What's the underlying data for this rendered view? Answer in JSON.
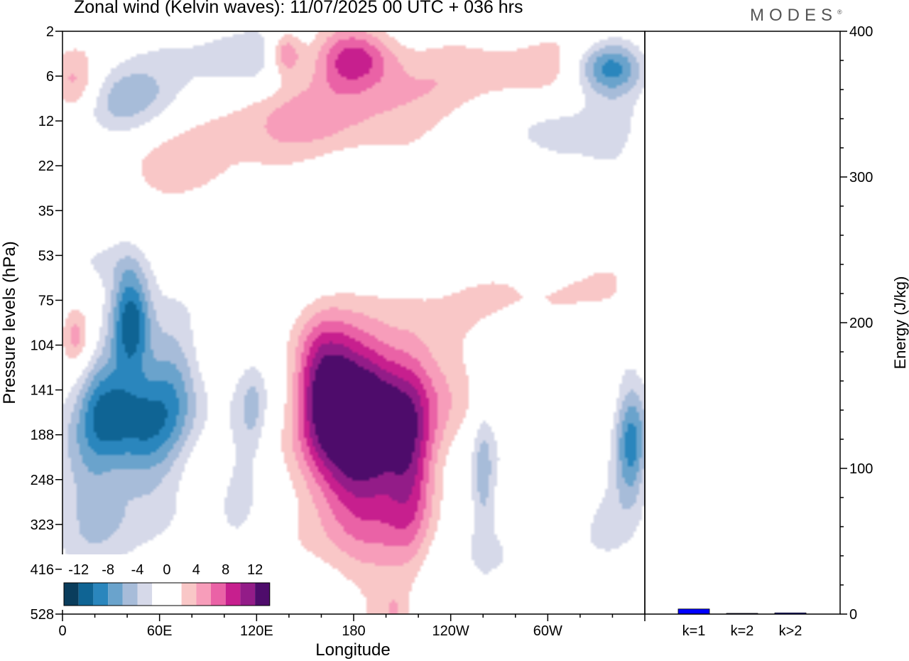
{
  "header": {
    "title": "Zonal wind (Kelvin waves):  11/07/2025  00 UTC  + 036 hrs",
    "brand": "MODES",
    "brand_mark": "®"
  },
  "chart_data": [
    {
      "type": "heatmap",
      "title": "Zonal wind (Kelvin waves):  11/07/2025  00 UTC  + 036 hrs",
      "xlabel": "Longitude",
      "ylabel": "Pressure levels (hPa)",
      "x_ticks": [
        {
          "lon": 0,
          "label": "0"
        },
        {
          "lon": 60,
          "label": "60E"
        },
        {
          "lon": 120,
          "label": "120E"
        },
        {
          "lon": 180,
          "label": "180"
        },
        {
          "lon": 240,
          "label": "120W"
        },
        {
          "lon": 300,
          "label": "60W"
        }
      ],
      "x_range": [
        0,
        360
      ],
      "y_levels": [
        "2",
        "6",
        "12",
        "22",
        "35",
        "53",
        "75",
        "104",
        "141",
        "188",
        "248",
        "323",
        "416",
        "528"
      ],
      "colorbar": {
        "labels": [
          "-12",
          "-8",
          "-4",
          "0",
          "4",
          "8",
          "12"
        ],
        "colors": [
          "#0a3d5c",
          "#0f6494",
          "#2a86bd",
          "#6aa3cc",
          "#a7bcd9",
          "#d6d9e9",
          "#ffffff",
          "#ffffff",
          "#f9c7c7",
          "#f79dba",
          "#ea62a6",
          "#c71f8e",
          "#931c88",
          "#4e0c6b"
        ]
      },
      "features": [
        {
          "lon": 42,
          "level": 6.5,
          "u": -11,
          "dlon": 12,
          "dlev": 1.3
        },
        {
          "lon": 52,
          "level": 8.8,
          "u": -8,
          "dlon": 28,
          "dlev": 1.1
        },
        {
          "lon": 25,
          "level": 8.2,
          "u": -7,
          "dlon": 15,
          "dlev": 1.2
        },
        {
          "lon": 68,
          "level": 7.6,
          "u": -5,
          "dlon": 18,
          "dlev": 1.2
        },
        {
          "lon": 12,
          "level": 9.6,
          "u": -4,
          "dlon": 18,
          "dlev": 1.8
        },
        {
          "lon": 32,
          "level": 10.8,
          "u": -2.5,
          "dlon": 30,
          "dlev": 1.4
        },
        {
          "lon": 60,
          "level": 10.2,
          "u": -2,
          "dlon": 18,
          "dlev": 1.3
        },
        {
          "lon": 118,
          "level": 8.4,
          "u": -3,
          "dlon": 8,
          "dlev": 1.0
        },
        {
          "lon": 110,
          "level": 9.6,
          "u": -2,
          "dlon": 12,
          "dlev": 2.5
        },
        {
          "lon": 187,
          "level": 8.3,
          "u": 13,
          "dlon": 27,
          "dlev": 1.5
        },
        {
          "lon": 160,
          "level": 7.8,
          "u": 9,
          "dlon": 18,
          "dlev": 1.5
        },
        {
          "lon": 215,
          "level": 9.5,
          "u": 6,
          "dlon": 14,
          "dlev": 2.2
        },
        {
          "lon": 182,
          "level": 9.8,
          "u": 7,
          "dlon": 28,
          "dlev": 1.6
        },
        {
          "lon": 190,
          "level": 10.8,
          "u": 3,
          "dlon": 36,
          "dlev": 2.5
        },
        {
          "lon": 230,
          "level": 7.8,
          "u": 3,
          "dlon": 25,
          "dlev": 2.0
        },
        {
          "lon": 260,
          "level": 9.8,
          "u": -4,
          "dlon": 6,
          "dlev": 1.3
        },
        {
          "lon": 270,
          "level": 11.5,
          "u": -2,
          "dlon": 30,
          "dlev": 2.2
        },
        {
          "lon": 352,
          "level": 9.3,
          "u": -8,
          "dlon": 10,
          "dlev": 1.3
        },
        {
          "lon": 340,
          "level": 10.4,
          "u": -2.5,
          "dlon": 16,
          "dlev": 2.0
        },
        {
          "lon": 330,
          "level": 7.1,
          "u": -3.5,
          "dlon": 22,
          "dlev": 1.1
        },
        {
          "lon": 335,
          "level": 8.4,
          "u": 3,
          "dlon": 12,
          "dlev": 1.5
        },
        {
          "lon": 8,
          "level": 6.8,
          "u": 6,
          "dlon": 10,
          "dlev": 0.7
        },
        {
          "lon": 30,
          "level": 5.2,
          "u": -2.5,
          "dlon": 30,
          "dlev": 0.6
        },
        {
          "lon": 160,
          "level": 2.0,
          "u": 4.5,
          "dlon": 70,
          "dlev": 1.0
        },
        {
          "lon": 280,
          "level": 0.9,
          "u": 3,
          "dlon": 90,
          "dlev": 0.9
        },
        {
          "lon": 320,
          "level": 6.2,
          "u": 3,
          "dlon": 60,
          "dlev": 0.9
        },
        {
          "lon": 180,
          "level": 0.6,
          "u": 9,
          "dlon": 25,
          "dlev": 0.7
        },
        {
          "lon": 138,
          "level": 0.5,
          "u": 7,
          "dlon": 10,
          "dlev": 0.5
        },
        {
          "lon": 105,
          "level": 0.5,
          "u": -3.5,
          "dlon": 50,
          "dlev": 0.8
        },
        {
          "lon": 338,
          "level": 0.8,
          "u": -10,
          "dlon": 22,
          "dlev": 0.6
        },
        {
          "lon": 40,
          "level": 1.5,
          "u": -4.5,
          "dlon": 35,
          "dlev": 0.8
        },
        {
          "lon": 8,
          "level": 1.2,
          "u": 5,
          "dlon": 15,
          "dlev": 0.7
        },
        {
          "lon": 80,
          "level": 3.2,
          "u": 3,
          "dlon": 40,
          "dlev": 0.8
        },
        {
          "lon": 300,
          "level": 2.3,
          "u": -3,
          "dlon": 30,
          "dlev": 1.0
        },
        {
          "lon": 345,
          "level": 2.4,
          "u": -2.5,
          "dlon": 20,
          "dlev": 1.2
        },
        {
          "lon": 205,
          "level": 13,
          "u": 2.5,
          "dlon": 8,
          "dlev": 0.6
        },
        {
          "lon": 250,
          "level": 12.6,
          "u": 2,
          "dlon": 6,
          "dlev": 0.6
        },
        {
          "lon": 65,
          "level": 12.6,
          "u": 2,
          "dlon": 5,
          "dlev": 0.6
        }
      ]
    },
    {
      "type": "bar",
      "categories": [
        "k=1",
        "k=2",
        "k>2"
      ],
      "values": [
        3.5,
        0.5,
        0.8
      ],
      "ylabel": "Energy (J/kg)",
      "ylim": [
        0,
        400
      ],
      "y_ticks": [
        "0",
        "100",
        "200",
        "300",
        "400"
      ],
      "bar_color": "#0000ff"
    }
  ]
}
